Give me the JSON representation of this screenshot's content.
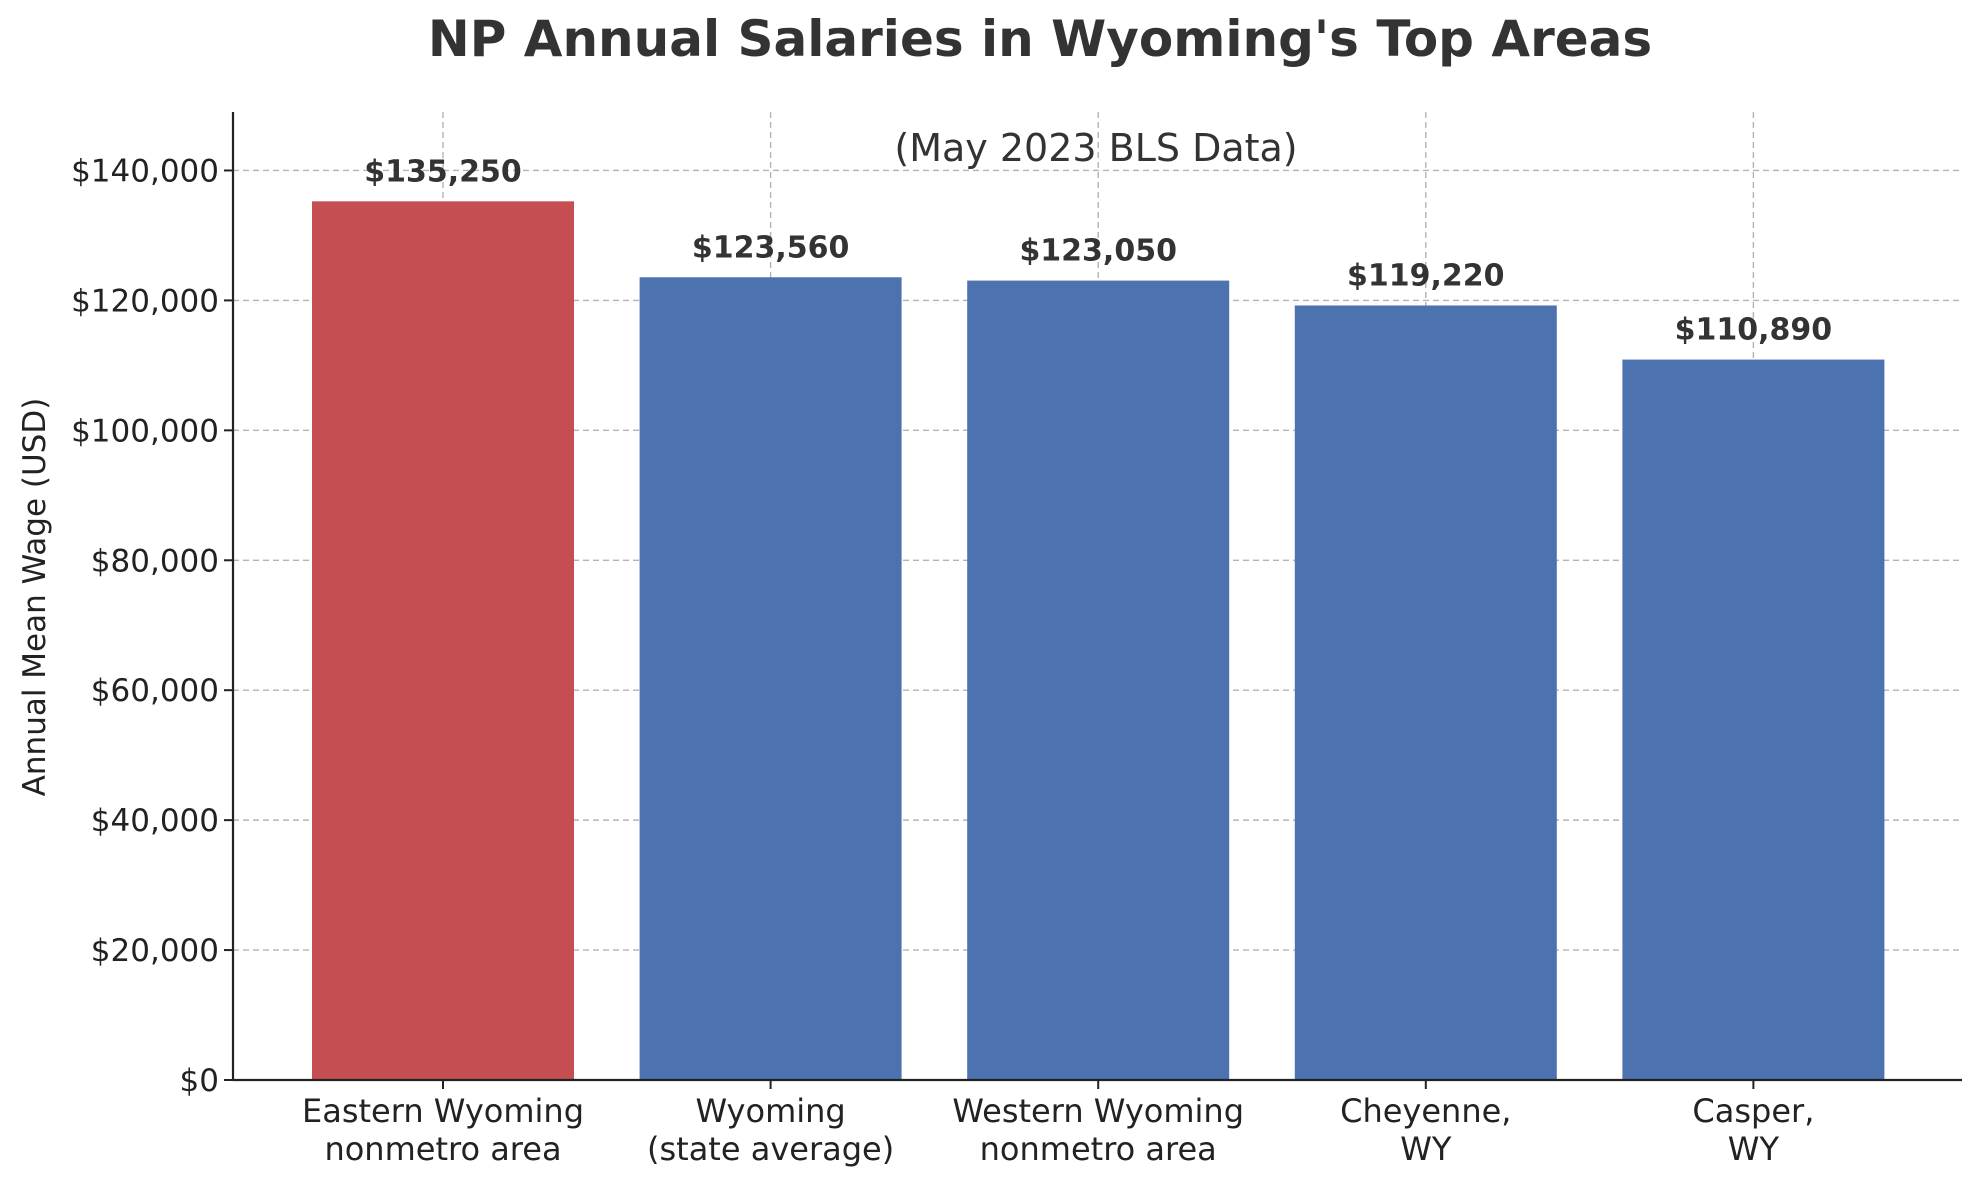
{
  "chart_data": {
    "type": "bar",
    "title": "NP Annual Salaries in Wyoming's Top Areas",
    "subtitle": "(May 2023 BLS Data)",
    "xlabel": "",
    "ylabel": "Annual Mean Wage (USD)",
    "categories": [
      [
        "Eastern Wyoming",
        "nonmetro area"
      ],
      [
        "Wyoming",
        "(state average)"
      ],
      [
        "Western Wyoming",
        "nonmetro area"
      ],
      [
        "Cheyenne,",
        "WY"
      ],
      [
        "Casper,",
        "WY"
      ]
    ],
    "values": [
      135250,
      123560,
      123050,
      119220,
      110890
    ],
    "data_labels": [
      "$135,250",
      "$123,560",
      "$123,050",
      "$119,220",
      "$110,890"
    ],
    "bar_colors": [
      "#c44e52",
      "#4c72b0",
      "#4c72b0",
      "#4c72b0",
      "#4c72b0"
    ],
    "ylim": [
      0,
      149000
    ],
    "yticks": [
      0,
      20000,
      40000,
      60000,
      80000,
      100000,
      120000,
      140000
    ],
    "ytick_labels": [
      "$0",
      "$20,000",
      "$40,000",
      "$60,000",
      "$80,000",
      "$100,000",
      "$120,000",
      "$140,000"
    ],
    "grid": true
  }
}
